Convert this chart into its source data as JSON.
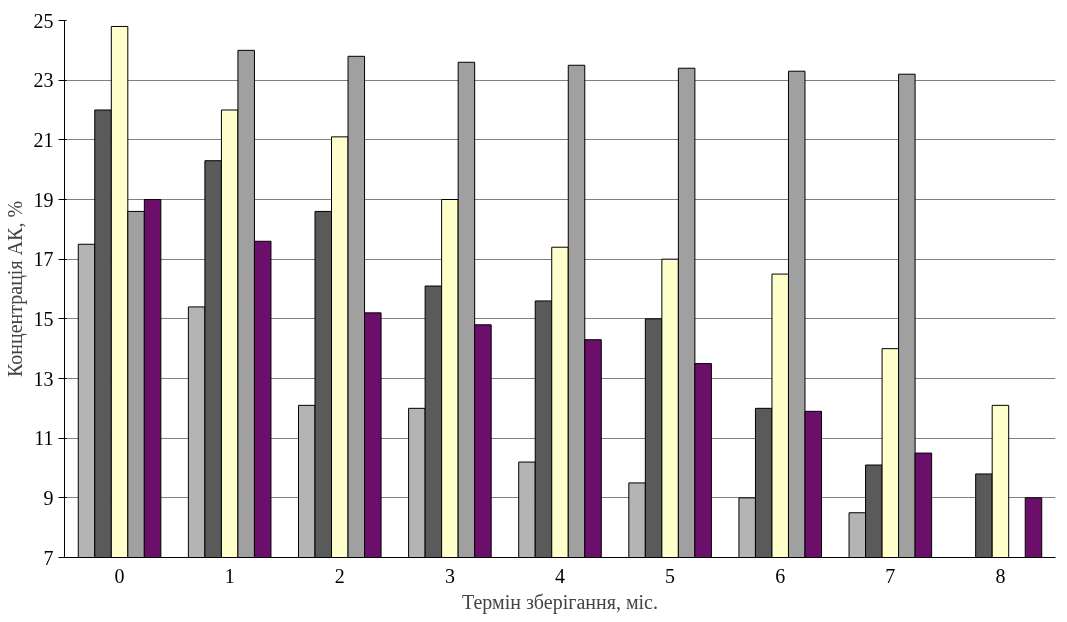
{
  "chart_data": {
    "type": "bar",
    "xlabel": "Термін зберігання, міс.",
    "ylabel": "Концентрація АК, %",
    "categories": [
      "0",
      "1",
      "2",
      "3",
      "4",
      "5",
      "6",
      "7",
      "8"
    ],
    "series": [
      {
        "color": "#b4b4b4",
        "values": [
          17.5,
          15.4,
          12.1,
          12.0,
          10.2,
          9.5,
          9.0,
          8.5,
          null
        ]
      },
      {
        "color": "#5a5a5a",
        "values": [
          22.0,
          20.3,
          18.6,
          16.1,
          15.6,
          15.0,
          12.0,
          10.1,
          9.8
        ]
      },
      {
        "color": "#ffffcc",
        "values": [
          24.8,
          22.0,
          21.1,
          19.0,
          17.4,
          17.0,
          16.5,
          14.0,
          12.1
        ]
      },
      {
        "color": "#a0a0a0",
        "values": [
          18.6,
          24.0,
          23.8,
          23.6,
          23.5,
          23.4,
          23.3,
          23.2,
          null
        ]
      },
      {
        "color": "#6b0f6b",
        "values": [
          19.0,
          17.6,
          15.2,
          14.8,
          14.3,
          13.5,
          11.9,
          10.5,
          9.0
        ]
      }
    ],
    "ylim": [
      7,
      25
    ],
    "yticks": [
      7,
      9,
      11,
      13,
      15,
      17,
      19,
      21,
      23,
      25
    ],
    "grid": "y"
  }
}
